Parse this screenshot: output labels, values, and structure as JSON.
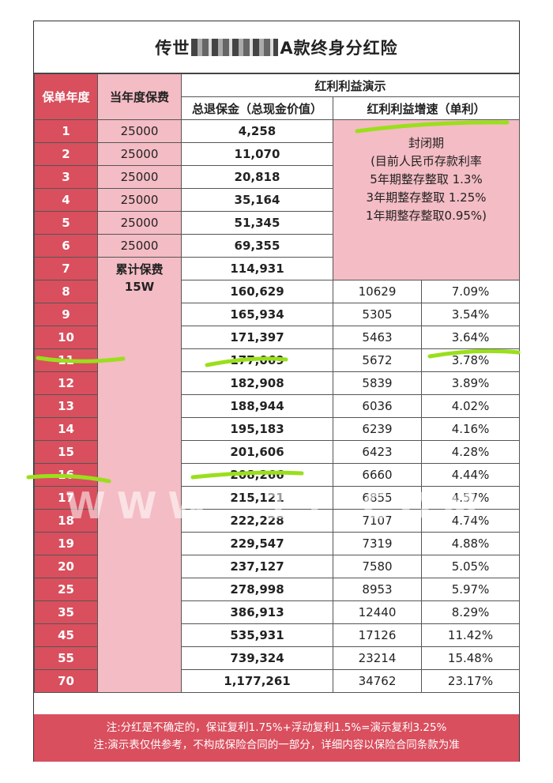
{
  "title_left": "传世",
  "title_right": "A款终身分红险",
  "headers": {
    "year": "保单年度",
    "premium": "当年度保费",
    "bonus_demo": "红利利益演示",
    "cash_value": "总退保金（总现金价值）",
    "bonus_growth": "红利利益增速（单利）"
  },
  "premium_total": "累计保费\n15W",
  "closed_period": [
    "封闭期",
    "(目前人民币存款利率",
    "5年期整存整取 1.3%",
    "3年期整存整取 1.25%",
    "1年期整存整取0.95%)"
  ],
  "rows": [
    {
      "year": "1",
      "premium": "25000",
      "cash": "4,258",
      "amt": "",
      "rate": ""
    },
    {
      "year": "2",
      "premium": "25000",
      "cash": "11,070",
      "amt": "",
      "rate": ""
    },
    {
      "year": "3",
      "premium": "25000",
      "cash": "20,818",
      "amt": "",
      "rate": ""
    },
    {
      "year": "4",
      "premium": "25000",
      "cash": "35,164",
      "amt": "",
      "rate": ""
    },
    {
      "year": "5",
      "premium": "25000",
      "cash": "51,345",
      "amt": "",
      "rate": ""
    },
    {
      "year": "6",
      "premium": "25000",
      "cash": "69,355",
      "amt": "",
      "rate": ""
    },
    {
      "year": "7",
      "premium": "",
      "cash": "114,931",
      "amt": "",
      "rate": ""
    },
    {
      "year": "8",
      "premium": "",
      "cash": "160,629",
      "amt": "10629",
      "rate": "7.09%"
    },
    {
      "year": "9",
      "premium": "",
      "cash": "165,934",
      "amt": "5305",
      "rate": "3.54%"
    },
    {
      "year": "10",
      "premium": "",
      "cash": "171,397",
      "amt": "5463",
      "rate": "3.64%"
    },
    {
      "year": "11",
      "premium": "",
      "cash": "177,069",
      "amt": "5672",
      "rate": "3.78%"
    },
    {
      "year": "12",
      "premium": "",
      "cash": "182,908",
      "amt": "5839",
      "rate": "3.89%"
    },
    {
      "year": "13",
      "premium": "",
      "cash": "188,944",
      "amt": "6036",
      "rate": "4.02%"
    },
    {
      "year": "14",
      "premium": "",
      "cash": "195,183",
      "amt": "6239",
      "rate": "4.16%"
    },
    {
      "year": "15",
      "premium": "",
      "cash": "201,606",
      "amt": "6423",
      "rate": "4.28%"
    },
    {
      "year": "16",
      "premium": "",
      "cash": "208,266",
      "amt": "6660",
      "rate": "4.44%"
    },
    {
      "year": "17",
      "premium": "",
      "cash": "215,121",
      "amt": "6855",
      "rate": "4.57%"
    },
    {
      "year": "18",
      "premium": "",
      "cash": "222,228",
      "amt": "7107",
      "rate": "4.74%"
    },
    {
      "year": "19",
      "premium": "",
      "cash": "229,547",
      "amt": "7319",
      "rate": "4.88%"
    },
    {
      "year": "20",
      "premium": "",
      "cash": "237,127",
      "amt": "7580",
      "rate": "5.05%"
    },
    {
      "year": "25",
      "premium": "",
      "cash": "278,998",
      "amt": "8953",
      "rate": "5.97%"
    },
    {
      "year": "35",
      "premium": "",
      "cash": "386,913",
      "amt": "12440",
      "rate": "8.29%"
    },
    {
      "year": "45",
      "premium": "",
      "cash": "535,931",
      "amt": "17126",
      "rate": "11.42%"
    },
    {
      "year": "55",
      "premium": "",
      "cash": "739,324",
      "amt": "23214",
      "rate": "15.48%"
    },
    {
      "year": "70",
      "premium": "",
      "cash": "1,177,261",
      "amt": "34762",
      "rate": "23.17%"
    }
  ],
  "notes": [
    "注:分红是不确定的，保证复利1.75%+浮动复利1.5%=演示复利3.25%",
    "注:演示表仅供参考，不构成保险合同的一部分，详细内容以保险合同条款为准"
  ],
  "watermark": "WWW.        11.COM",
  "colors": {
    "header_red": "#d94f5e",
    "pink": "#f4bcc4",
    "highlight_green": "#9adf1c"
  }
}
